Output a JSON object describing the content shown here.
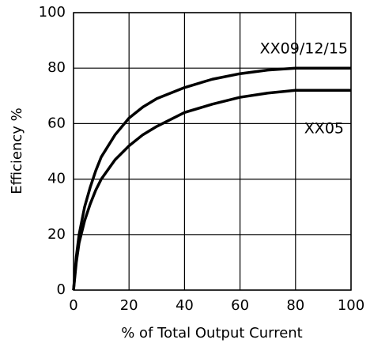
{
  "chart_data": {
    "type": "line",
    "xlabel": "% of Total Output Current",
    "ylabel": "Efficiency %",
    "x": [
      0,
      1,
      2,
      4,
      6,
      8,
      10,
      15,
      20,
      25,
      30,
      40,
      50,
      60,
      70,
      80,
      90,
      100
    ],
    "series": [
      {
        "name": "XX09/12/15",
        "color": "#000000",
        "values": [
          0,
          12,
          20,
          30,
          37,
          43,
          48,
          56,
          62,
          66,
          69,
          73,
          76,
          78,
          79.3,
          80,
          80,
          80
        ]
      },
      {
        "name": "XX05",
        "color": "#000000",
        "values": [
          0,
          10,
          17,
          25,
          31,
          36,
          40,
          47,
          52,
          56,
          59,
          64,
          67,
          69.5,
          71,
          72,
          72,
          72
        ]
      }
    ],
    "xlim": [
      0,
      100
    ],
    "xticks": [
      0,
      20,
      40,
      60,
      80,
      100
    ],
    "ylim": [
      0,
      100
    ],
    "yticks": [
      0,
      20,
      40,
      60,
      80,
      100
    ],
    "grid": true
  }
}
